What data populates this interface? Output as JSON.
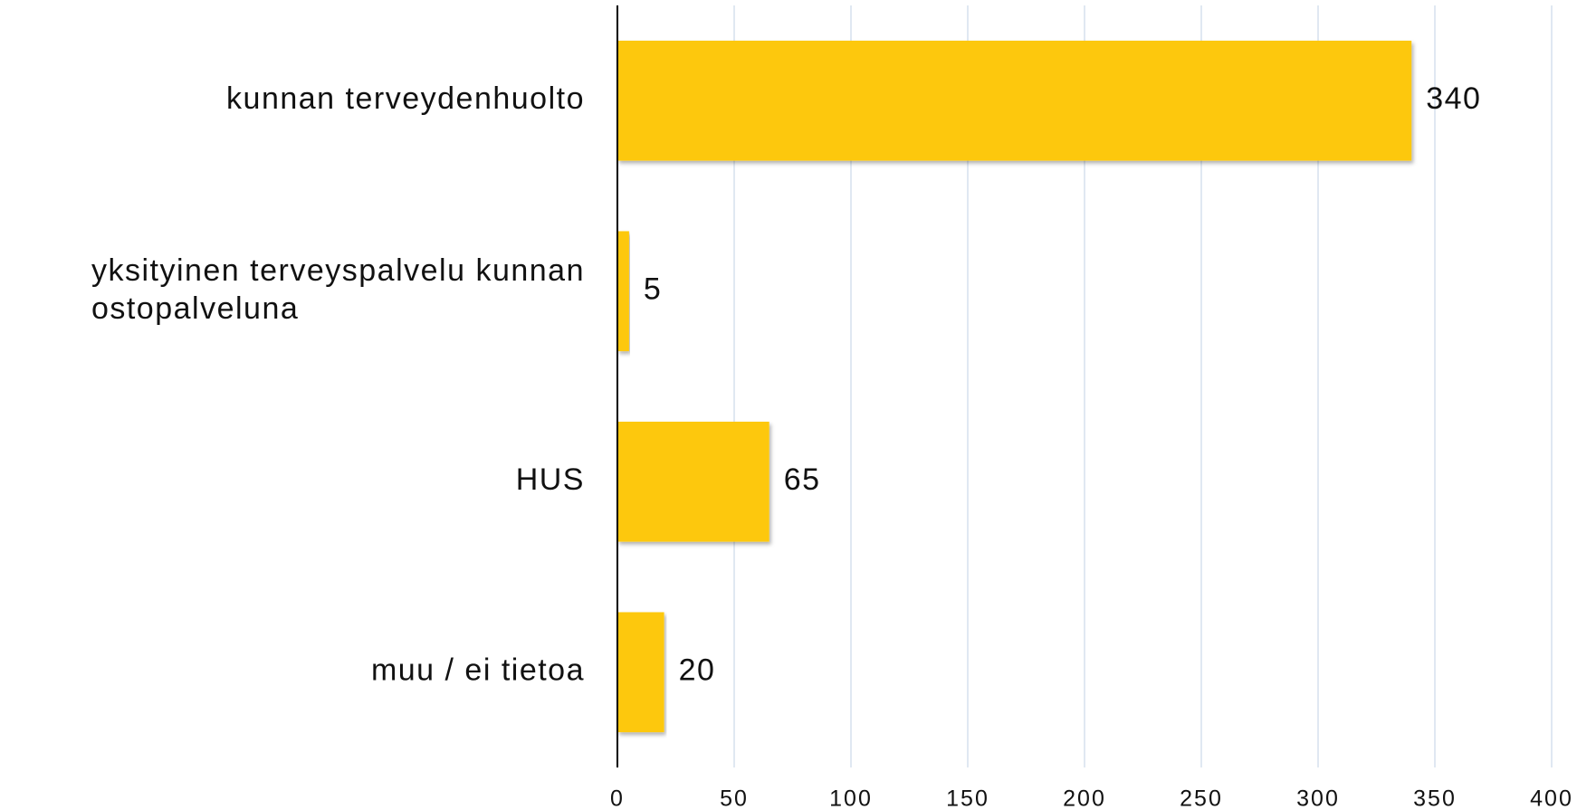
{
  "chart_data": {
    "type": "bar",
    "orientation": "horizontal",
    "categories": [
      "kunnan terveydenhuolto",
      "yksityinen terveyspalvelu kunnan ostopalveluna",
      "HUS",
      "muu / ei tietoa"
    ],
    "values": [
      340,
      5,
      65,
      20
    ],
    "color": "#fdc80a",
    "xlim": [
      0,
      400
    ],
    "xticks": [
      0,
      50,
      100,
      150,
      200,
      250,
      300,
      350,
      400
    ],
    "grid": true
  }
}
